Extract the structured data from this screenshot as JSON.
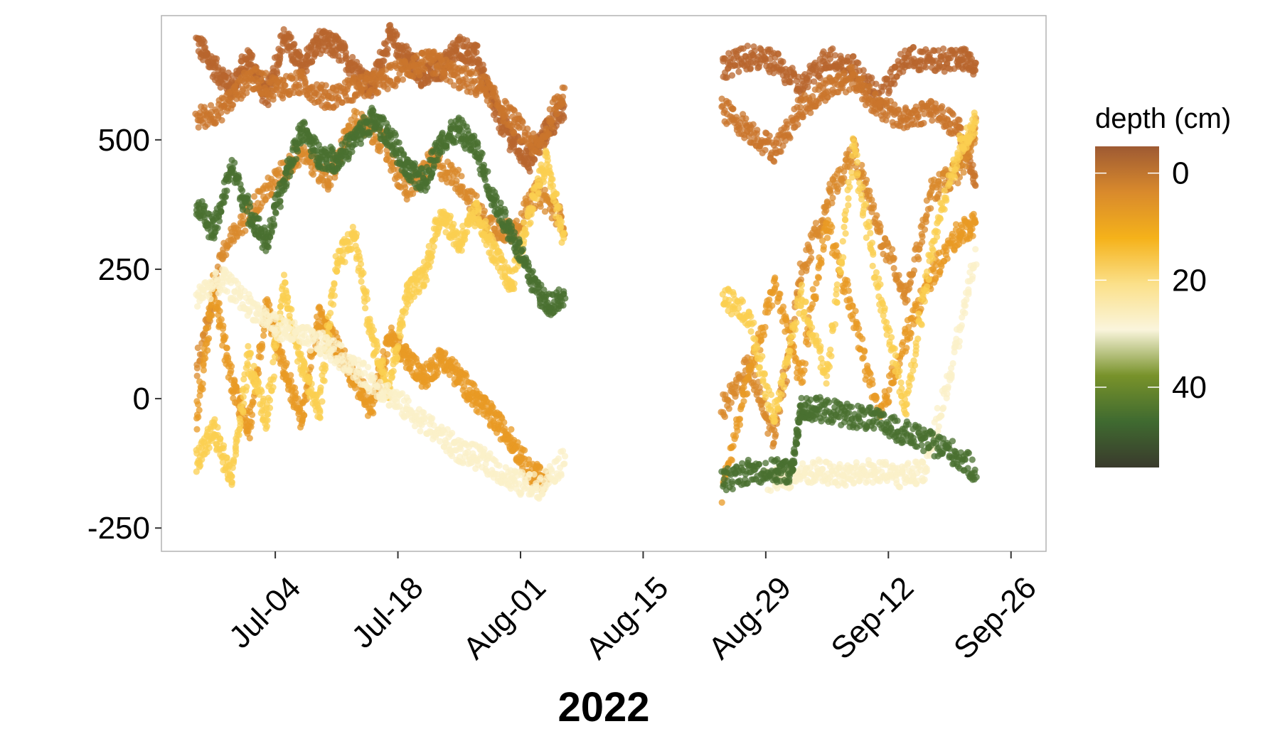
{
  "chart_data": {
    "type": "scatter",
    "title": "",
    "xlabel": "2022",
    "ylabel": "",
    "x_ticks": [
      "Jul-04",
      "Jul-18",
      "Aug-01",
      "Aug-15",
      "Aug-29",
      "Sep-12",
      "Sep-26"
    ],
    "y_ticks": [
      500,
      250,
      0,
      -250
    ],
    "ylim": [
      -295,
      740
    ],
    "xlim": [
      "2022-06-21",
      "2022-09-30"
    ],
    "grid": false,
    "legend": {
      "title": "depth (cm)",
      "placement": "right",
      "type": "colorbar",
      "ticks": [
        0,
        20,
        40
      ],
      "range": [
        -5,
        55
      ],
      "colors": [
        "#9e5a33",
        "#d98a2c",
        "#f5b21a",
        "#fbe08a",
        "#faf5dc",
        "#78922a",
        "#3f6a30",
        "#3a3a2c"
      ]
    },
    "series": [
      {
        "depth": 0,
        "color": "#b8652e",
        "x": [
          "2022-06-25",
          "2022-06-27",
          "2022-06-29",
          "2022-07-01",
          "2022-07-03",
          "2022-07-05",
          "2022-07-07",
          "2022-07-09",
          "2022-07-11",
          "2022-07-13",
          "2022-07-15",
          "2022-07-17",
          "2022-07-19",
          "2022-07-21",
          "2022-07-23",
          "2022-07-25",
          "2022-07-27",
          "2022-07-29",
          "2022-07-31",
          "2022-08-02",
          "2022-08-04",
          "2022-08-06"
        ],
        "y": [
          690,
          640,
          600,
          660,
          580,
          700,
          640,
          690,
          680,
          640,
          600,
          700,
          660,
          620,
          640,
          680,
          660,
          560,
          500,
          460,
          520,
          560
        ]
      },
      {
        "depth": 2,
        "color": "#c9762c",
        "x": [
          "2022-06-25",
          "2022-06-28",
          "2022-07-01",
          "2022-07-04",
          "2022-07-07",
          "2022-07-10",
          "2022-07-13",
          "2022-07-16",
          "2022-07-19",
          "2022-07-22",
          "2022-07-25",
          "2022-07-28",
          "2022-07-31",
          "2022-08-03",
          "2022-08-06"
        ],
        "y": [
          540,
          560,
          620,
          600,
          610,
          580,
          600,
          610,
          640,
          650,
          620,
          600,
          540,
          480,
          600
        ]
      },
      {
        "depth": 4,
        "color": "#d98a2c",
        "x": [
          "2022-06-25",
          "2022-06-28",
          "2022-07-01",
          "2022-07-04",
          "2022-07-07",
          "2022-07-10",
          "2022-07-13",
          "2022-07-16",
          "2022-07-19",
          "2022-07-22",
          "2022-07-25",
          "2022-07-28",
          "2022-07-31",
          "2022-08-03",
          "2022-08-06"
        ],
        "y": [
          60,
          280,
          360,
          420,
          480,
          420,
          540,
          500,
          400,
          460,
          420,
          340,
          320,
          400,
          340
        ]
      },
      {
        "depth": 8,
        "color": "#e89a24",
        "x": [
          "2022-06-25",
          "2022-06-27",
          "2022-06-29",
          "2022-07-01",
          "2022-07-03",
          "2022-07-05",
          "2022-07-07",
          "2022-07-09",
          "2022-07-11",
          "2022-07-13",
          "2022-07-15",
          "2022-07-17",
          "2022-07-19",
          "2022-07-21",
          "2022-07-23",
          "2022-07-25",
          "2022-07-27",
          "2022-07-29",
          "2022-07-31",
          "2022-08-02",
          "2022-08-04"
        ],
        "y": [
          -40,
          220,
          30,
          -60,
          180,
          60,
          -40,
          160,
          100,
          40,
          -20,
          120,
          80,
          40,
          80,
          40,
          0,
          -40,
          -80,
          -140,
          -160
        ]
      },
      {
        "depth": 16,
        "color": "#fbcf50",
        "x": [
          "2022-06-25",
          "2022-06-27",
          "2022-06-29",
          "2022-07-01",
          "2022-07-03",
          "2022-07-05",
          "2022-07-07",
          "2022-07-09",
          "2022-07-11",
          "2022-07-13",
          "2022-07-15",
          "2022-07-17",
          "2022-07-19",
          "2022-07-21",
          "2022-07-23",
          "2022-07-25",
          "2022-07-27",
          "2022-07-29",
          "2022-07-31",
          "2022-08-02",
          "2022-08-04",
          "2022-08-06"
        ],
        "y": [
          -120,
          -60,
          -160,
          80,
          -40,
          220,
          60,
          -20,
          260,
          320,
          120,
          20,
          200,
          240,
          360,
          300,
          360,
          280,
          220,
          360,
          460,
          300
        ]
      },
      {
        "depth": 24,
        "color": "#fbf0c8",
        "x": [
          "2022-06-25",
          "2022-06-28",
          "2022-07-01",
          "2022-07-04",
          "2022-07-07",
          "2022-07-10",
          "2022-07-13",
          "2022-07-16",
          "2022-07-19",
          "2022-07-22",
          "2022-07-25",
          "2022-07-28",
          "2022-07-31",
          "2022-08-03",
          "2022-08-06"
        ],
        "y": [
          200,
          230,
          180,
          140,
          120,
          100,
          60,
          20,
          -20,
          -60,
          -100,
          -120,
          -160,
          -170,
          -120
        ]
      },
      {
        "depth": 45,
        "color": "#4a7030",
        "x": [
          "2022-06-25",
          "2022-06-27",
          "2022-06-29",
          "2022-07-01",
          "2022-07-03",
          "2022-07-05",
          "2022-07-07",
          "2022-07-09",
          "2022-07-11",
          "2022-07-13",
          "2022-07-15",
          "2022-07-17",
          "2022-07-19",
          "2022-07-21",
          "2022-07-23",
          "2022-07-25",
          "2022-07-27",
          "2022-07-29",
          "2022-07-31",
          "2022-08-02",
          "2022-08-04",
          "2022-08-06"
        ],
        "y": [
          380,
          320,
          450,
          360,
          300,
          420,
          520,
          470,
          460,
          500,
          540,
          510,
          440,
          420,
          500,
          520,
          480,
          380,
          320,
          240,
          180,
          200
        ]
      },
      {
        "depth": 0,
        "color": "#b8652e",
        "x": [
          "2022-08-24",
          "2022-08-27",
          "2022-08-30",
          "2022-09-02",
          "2022-09-05",
          "2022-09-08",
          "2022-09-11",
          "2022-09-14",
          "2022-09-17",
          "2022-09-20",
          "2022-09-22"
        ],
        "y": [
          640,
          660,
          650,
          600,
          660,
          640,
          580,
          660,
          650,
          660,
          640
        ]
      },
      {
        "depth": 2,
        "color": "#c9762c",
        "x": [
          "2022-08-24",
          "2022-08-27",
          "2022-08-30",
          "2022-09-02",
          "2022-09-05",
          "2022-09-08",
          "2022-09-11",
          "2022-09-14",
          "2022-09-17",
          "2022-09-20",
          "2022-09-22"
        ],
        "y": [
          560,
          520,
          480,
          560,
          600,
          620,
          560,
          540,
          560,
          520,
          420
        ]
      },
      {
        "depth": 4,
        "color": "#d98a2c",
        "x": [
          "2022-08-24",
          "2022-08-27",
          "2022-08-30",
          "2022-09-02",
          "2022-09-05",
          "2022-09-08",
          "2022-09-11",
          "2022-09-14",
          "2022-09-17",
          "2022-09-20",
          "2022-09-22"
        ],
        "y": [
          -20,
          60,
          -80,
          240,
          380,
          480,
          320,
          200,
          400,
          440,
          520
        ]
      },
      {
        "depth": 8,
        "color": "#e89a24",
        "x": [
          "2022-08-24",
          "2022-08-27",
          "2022-08-30",
          "2022-09-02",
          "2022-09-05",
          "2022-09-08",
          "2022-09-11",
          "2022-09-14",
          "2022-09-17",
          "2022-09-20",
          "2022-09-22"
        ],
        "y": [
          -180,
          40,
          220,
          40,
          340,
          160,
          -40,
          120,
          240,
          320,
          340
        ]
      },
      {
        "depth": 16,
        "color": "#fbcf50",
        "x": [
          "2022-08-24",
          "2022-08-27",
          "2022-08-30",
          "2022-09-02",
          "2022-09-05",
          "2022-09-08",
          "2022-09-11",
          "2022-09-14",
          "2022-09-17",
          "2022-09-20",
          "2022-09-22"
        ],
        "y": [
          200,
          160,
          -40,
          200,
          40,
          480,
          200,
          -20,
          300,
          480,
          540
        ]
      },
      {
        "depth": 24,
        "color": "#fbf0c8",
        "x": [
          "2022-08-29",
          "2022-09-01",
          "2022-09-04",
          "2022-09-07",
          "2022-09-10",
          "2022-09-13",
          "2022-09-16",
          "2022-09-19",
          "2022-09-22"
        ],
        "y": [
          -160,
          -150,
          -140,
          -150,
          -140,
          -150,
          -140,
          40,
          280
        ]
      },
      {
        "depth": 45,
        "color": "#4a7030",
        "x": [
          "2022-08-24",
          "2022-08-27",
          "2022-08-30",
          "2022-09-01",
          "2022-09-02",
          "2022-09-04",
          "2022-09-07",
          "2022-09-10",
          "2022-09-13",
          "2022-09-16",
          "2022-09-19",
          "2022-09-22"
        ],
        "y": [
          -160,
          -140,
          -140,
          -140,
          -20,
          -20,
          -30,
          -40,
          -60,
          -80,
          -100,
          -140
        ]
      }
    ]
  }
}
